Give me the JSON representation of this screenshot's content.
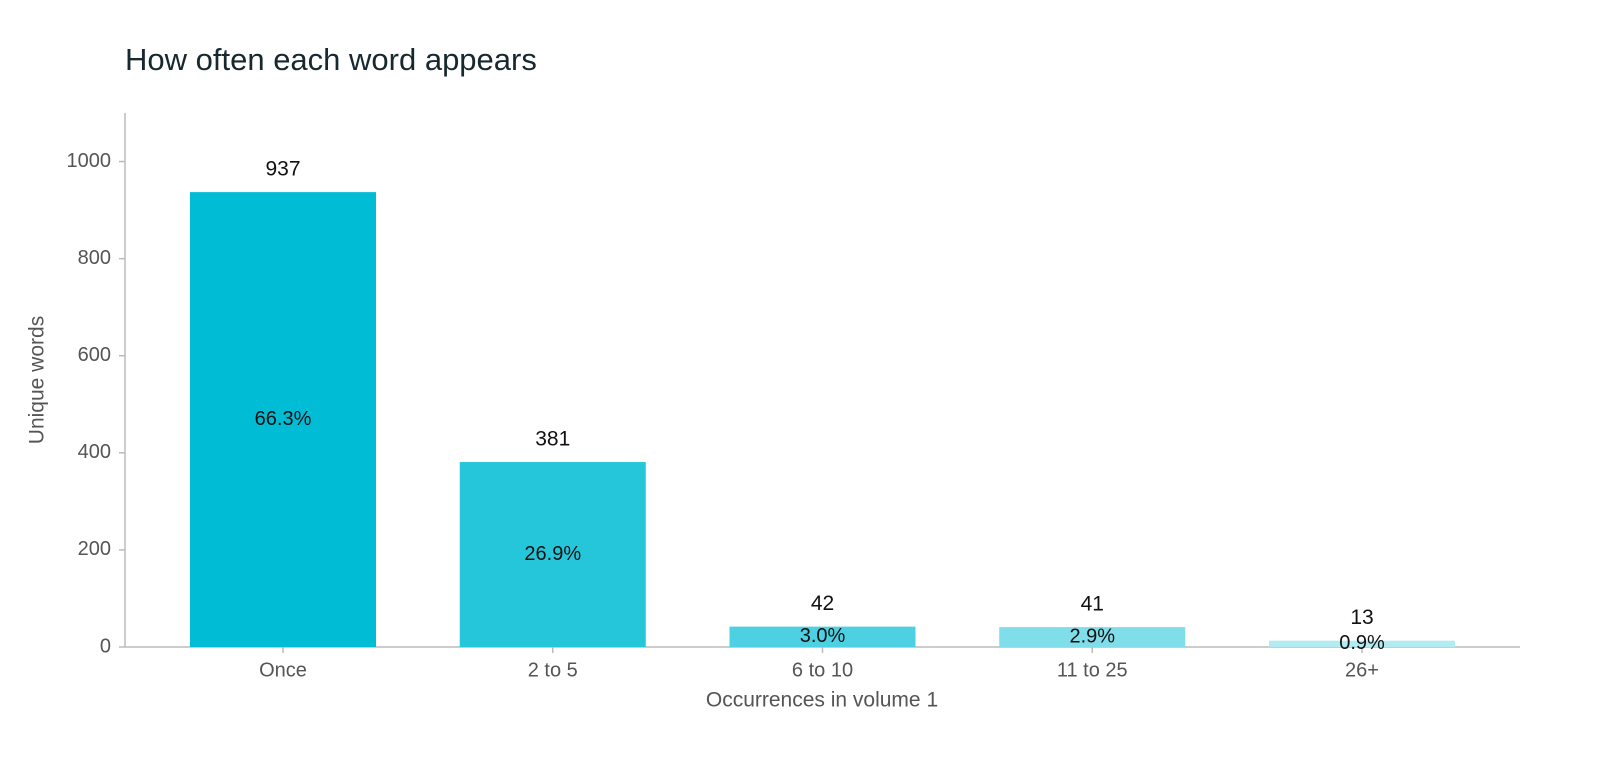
{
  "chart_data": {
    "type": "bar",
    "title": "How often each word appears",
    "x_label": "Occurrences in volume 1",
    "y_label": "Unique words",
    "categories": [
      "Once",
      "2 to 5",
      "6 to 10",
      "11 to 25",
      "26+"
    ],
    "values": [
      937,
      381,
      42,
      41,
      13
    ],
    "percent_labels": [
      "66.3%",
      "26.9%",
      "3.0%",
      "2.9%",
      "0.9%"
    ],
    "colors": [
      "#00bcd4",
      "#26c6da",
      "#4dd0e1",
      "#80deea",
      "#b2ebf2"
    ],
    "ylim": [
      0,
      1100
    ],
    "yticks": [
      0,
      200,
      400,
      600,
      800,
      1000
    ],
    "grid": false
  }
}
